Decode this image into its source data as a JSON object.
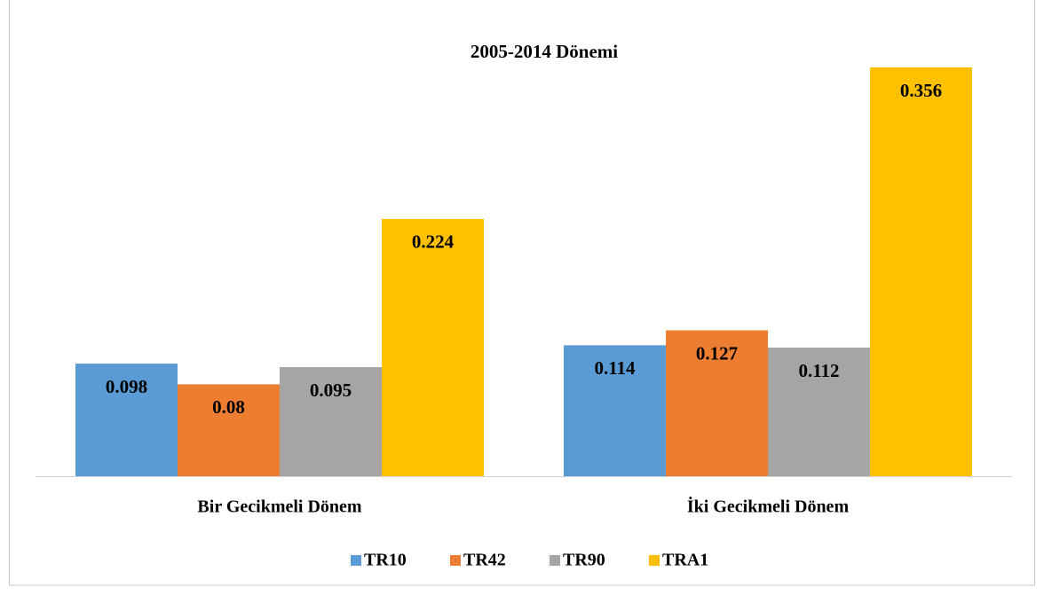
{
  "chart_data": {
    "type": "bar",
    "title": "2005-2014 Dönemi",
    "categories": [
      "Bir Gecikmeli Dönem",
      "İki Gecikmeli Dönem"
    ],
    "series": [
      {
        "name": "TR10",
        "color": "#5b9bd5",
        "values": [
          0.098,
          0.114
        ]
      },
      {
        "name": "TR42",
        "color": "#ed7d31",
        "values": [
          0.08,
          0.127
        ]
      },
      {
        "name": "TR90",
        "color": "#a5a5a5",
        "values": [
          0.095,
          0.112
        ]
      },
      {
        "name": "TRA1",
        "color": "#ffc000",
        "values": [
          0.224,
          0.356
        ]
      }
    ],
    "legend": "bottom"
  }
}
